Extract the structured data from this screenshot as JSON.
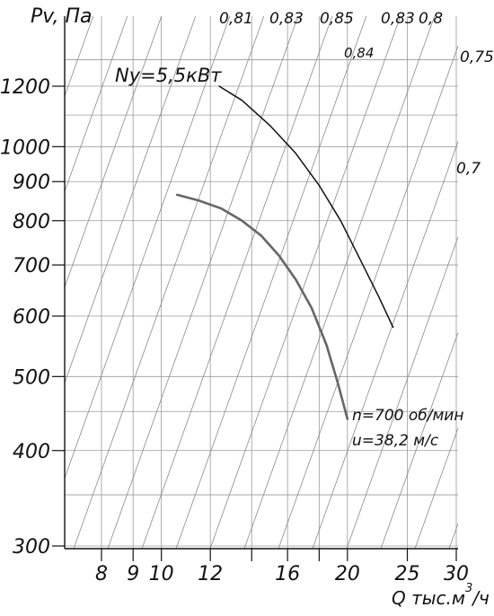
{
  "chart_data": {
    "type": "line",
    "y_axis_label": "Pv, Па",
    "x_axis_label": "Q тыс.м³/ч",
    "x_axis_label_parts": {
      "main": "Q тыс.м",
      "sup": "3",
      "tail": "/ч"
    },
    "x_scale": "log",
    "y_scale": "log",
    "xlim": [
      6.3,
      30
    ],
    "ylim": [
      300,
      1400
    ],
    "x_tick_labels": [
      "8",
      "9",
      "10",
      "12",
      "16",
      "20",
      "25",
      "30"
    ],
    "x_tick_values": [
      8,
      9,
      10,
      12,
      16,
      20,
      25,
      30
    ],
    "x_minor_ticks": [
      14,
      18
    ],
    "y_tick_labels": [
      "300",
      "400",
      "500",
      "600",
      "700",
      "800",
      "900",
      "1000",
      "1200"
    ],
    "y_tick_values": [
      300,
      400,
      500,
      600,
      700,
      800,
      900,
      1000,
      1200
    ],
    "grid": true,
    "efficiency_lines": [
      {
        "label": "0,81"
      },
      {
        "label": "0,83"
      },
      {
        "label": "0,85"
      },
      {
        "label": "0,84"
      },
      {
        "label": "0,83"
      },
      {
        "label": "0,8"
      },
      {
        "label": "0,75"
      },
      {
        "label": "0,7"
      }
    ],
    "series": [
      {
        "name": "Ny=5,5кВт",
        "kind": "power",
        "color": "#111111",
        "points": [
          [
            12.4,
            1200
          ],
          [
            13.5,
            1150
          ],
          [
            15.0,
            1065
          ],
          [
            16.5,
            980
          ],
          [
            18.0,
            890
          ],
          [
            19.5,
            800
          ],
          [
            21.0,
            710
          ],
          [
            22.5,
            635
          ],
          [
            23.7,
            580
          ]
        ]
      },
      {
        "name": "",
        "kind": "pressure",
        "color": "#666666",
        "points": [
          [
            10.6,
            865
          ],
          [
            11.5,
            850
          ],
          [
            12.5,
            830
          ],
          [
            13.5,
            800
          ],
          [
            14.5,
            765
          ],
          [
            15.5,
            720
          ],
          [
            16.5,
            670
          ],
          [
            17.5,
            615
          ],
          [
            18.5,
            550
          ],
          [
            19.3,
            490
          ],
          [
            20.0,
            440
          ]
        ]
      }
    ],
    "annotations": [
      {
        "text": "n=700 об/мин"
      },
      {
        "text": "u=38,2 м/с"
      }
    ]
  }
}
